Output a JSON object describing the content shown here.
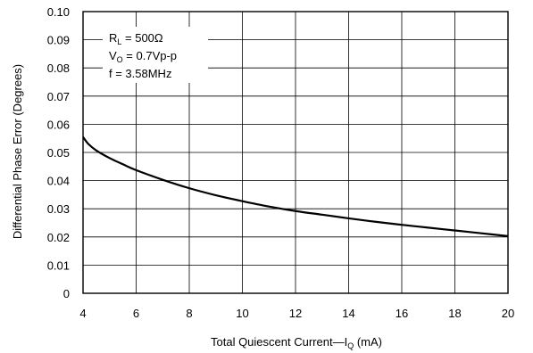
{
  "chart_data": {
    "type": "line",
    "title": "",
    "xlabel": {
      "prefix": "Total Quiescent Current—I",
      "sub": "Q",
      "suffix": " (mA)"
    },
    "ylabel": "Differential Phase Error (Degrees)",
    "xlim": [
      4,
      20
    ],
    "ylim": [
      0,
      0.1
    ],
    "x_ticks": [
      "4",
      "6",
      "8",
      "10",
      "12",
      "14",
      "16",
      "18",
      "20"
    ],
    "y_ticks": [
      "0",
      "0.01",
      "0.02",
      "0.03",
      "0.04",
      "0.05",
      "0.06",
      "0.07",
      "0.08",
      "0.09",
      "0.10"
    ],
    "grid": true,
    "annotations": [
      {
        "prefix": "R",
        "sub": "L",
        "suffix": " = 500Ω"
      },
      {
        "prefix": "V",
        "sub": "O",
        "suffix": " = 0.7Vp-p"
      },
      {
        "prefix": "f = 3.58MHz",
        "sub": "",
        "suffix": ""
      }
    ],
    "series": [
      {
        "x": [
          4.0,
          4.2,
          4.5,
          5.0,
          5.5,
          6.0,
          7.0,
          8.0,
          9.0,
          10.0,
          11.0,
          12.0,
          13.0,
          14.0,
          15.0,
          16.0,
          17.0,
          18.0,
          19.0,
          20.0
        ],
        "y": [
          0.0555,
          0.053,
          0.0507,
          0.048,
          0.0458,
          0.0437,
          0.0403,
          0.0373,
          0.0348,
          0.0327,
          0.0308,
          0.0292,
          0.0279,
          0.0266,
          0.0254,
          0.0243,
          0.0233,
          0.0223,
          0.0213,
          0.0203
        ]
      }
    ]
  }
}
